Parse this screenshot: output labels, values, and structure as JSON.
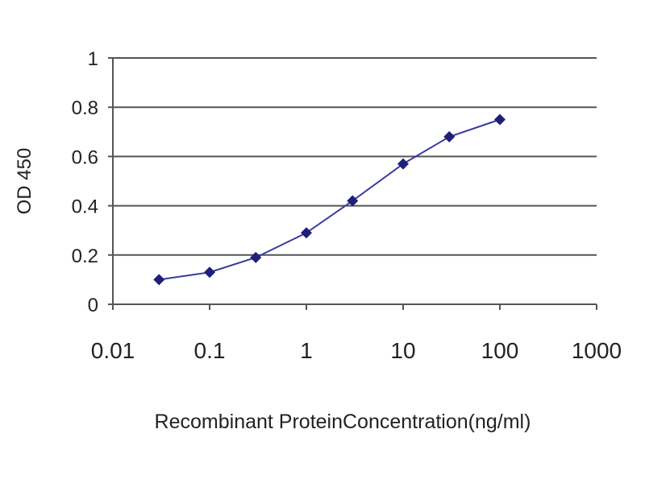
{
  "chart_data": {
    "type": "line",
    "title": "",
    "xlabel": "Recombinant ProteinConcentration(ng/ml)",
    "ylabel": "OD 450",
    "x_scale": "log",
    "xlim": [
      0.01,
      1000
    ],
    "ylim": [
      0,
      1
    ],
    "x_ticks": [
      0.01,
      0.1,
      1,
      10,
      100,
      1000
    ],
    "x_tick_labels": [
      "0.01",
      "0.1",
      "1",
      "10",
      "100",
      "1000"
    ],
    "y_ticks": [
      0,
      0.2,
      0.4,
      0.6,
      0.8,
      1
    ],
    "y_tick_labels": [
      "0",
      "0.2",
      "0.4",
      "0.6",
      "0.8",
      "1"
    ],
    "grid": "horizontal",
    "legend": "none",
    "series": [
      {
        "x": [
          0.03,
          0.1,
          0.3,
          1,
          3,
          10,
          30,
          100
        ],
        "y": [
          0.1,
          0.13,
          0.19,
          0.29,
          0.42,
          0.57,
          0.68,
          0.75
        ],
        "color": "#1f1f7a",
        "marker": "diamond"
      }
    ]
  }
}
